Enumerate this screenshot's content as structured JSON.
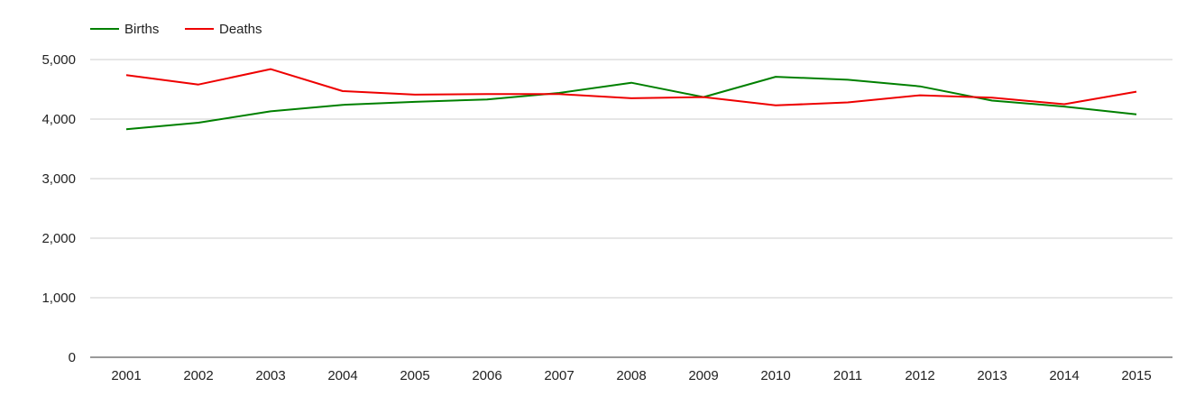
{
  "chart_data": {
    "type": "line",
    "title": "",
    "xlabel": "",
    "ylabel": "",
    "categories": [
      "2001",
      "2002",
      "2003",
      "2004",
      "2005",
      "2006",
      "2007",
      "2008",
      "2009",
      "2010",
      "2011",
      "2012",
      "2013",
      "2014",
      "2015"
    ],
    "ylim": [
      0,
      5000
    ],
    "yticks": [
      0,
      1000,
      2000,
      3000,
      4000,
      5000
    ],
    "ytick_labels": [
      "0",
      "1,000",
      "2,000",
      "3,000",
      "4,000",
      "5,000"
    ],
    "grid": true,
    "legend_position": "top-left",
    "series": [
      {
        "name": "Births",
        "color": "#008000",
        "values": [
          3830,
          3940,
          4130,
          4240,
          4290,
          4330,
          4440,
          4610,
          4370,
          4710,
          4660,
          4550,
          4310,
          4210,
          4080
        ]
      },
      {
        "name": "Deaths",
        "color": "#ee0000",
        "values": [
          4740,
          4580,
          4840,
          4470,
          4410,
          4420,
          4420,
          4350,
          4370,
          4230,
          4280,
          4400,
          4360,
          4250,
          4460
        ]
      }
    ]
  }
}
